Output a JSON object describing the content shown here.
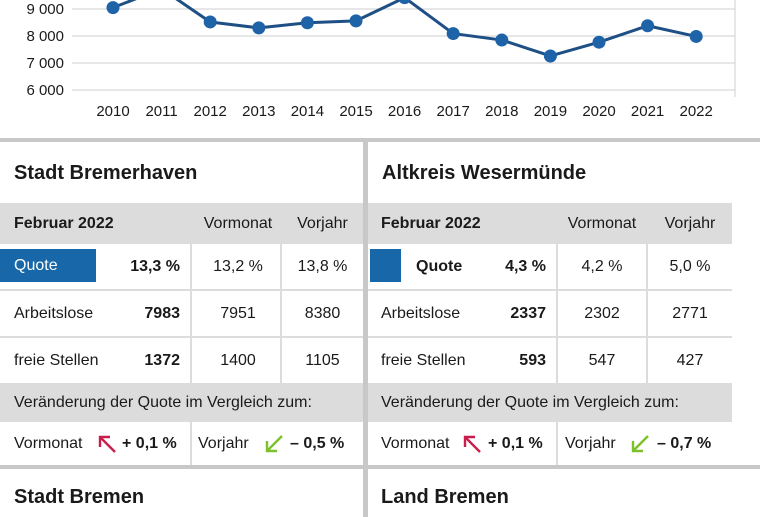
{
  "chart_data": {
    "type": "line",
    "categories": [
      "2010",
      "2011",
      "2012",
      "2013",
      "2014",
      "2015",
      "2016",
      "2017",
      "2018",
      "2019",
      "2020",
      "2021",
      "2022"
    ],
    "values": [
      9050,
      9750,
      8520,
      8300,
      8490,
      8560,
      9420,
      8090,
      7850,
      7260,
      7770,
      8380,
      7983
    ],
    "y_ticks": [
      "6 000",
      "7 000",
      "8 000",
      "9 000"
    ],
    "y_tick_values": [
      6000,
      7000,
      8000,
      9000
    ],
    "ylim": [
      6000,
      9400
    ],
    "grid": true,
    "line_color": "#1e4f85",
    "point_color": "#1e63a8"
  },
  "colors": {
    "quote_blue": "#1767a9",
    "arrow_up": "#c81e4b",
    "arrow_down": "#7cc12a",
    "gray": "#dcdcdc"
  },
  "bremerhaven": {
    "title": "Stadt Bremerhaven",
    "header": {
      "period": "Februar 2022",
      "prev_month": "Vormonat",
      "prev_year": "Vorjahr"
    },
    "quote": {
      "label": "Quote",
      "value": "13,3 %",
      "prev_month": "13,2 %",
      "prev_year": "13,8 %"
    },
    "unemployed": {
      "label": "Arbeitslose",
      "value": "7983",
      "prev_month": "7951",
      "prev_year": "8380"
    },
    "vacancies": {
      "label": "freie Stellen",
      "value": "1372",
      "prev_month": "1400",
      "prev_year": "1105"
    },
    "change_text": "Veränderung der Quote im Vergleich zum:",
    "change": {
      "month_label": "Vormonat",
      "month_icon": "arrow-up-left-icon",
      "month_value": "+ 0,1 %",
      "year_label": "Vorjahr",
      "year_icon": "arrow-down-left-icon",
      "year_value": "– 0,5 %"
    }
  },
  "wesermuende": {
    "title": "Altkreis Wesermünde",
    "header": {
      "period": "Februar 2022",
      "prev_month": "Vormonat",
      "prev_year": "Vorjahr"
    },
    "quote": {
      "label": "Quote",
      "value": "4,3 %",
      "prev_month": "4,2 %",
      "prev_year": "5,0 %"
    },
    "unemployed": {
      "label": "Arbeitslose",
      "value": "2337",
      "prev_month": "2302",
      "prev_year": "2771"
    },
    "vacancies": {
      "label": "freie Stellen",
      "value": "593",
      "prev_month": "547",
      "prev_year": "427"
    },
    "change_text": "Veränderung der Quote im Vergleich zum:",
    "change": {
      "month_label": "Vormonat",
      "month_icon": "arrow-up-left-icon",
      "month_value": "+ 0,1 %",
      "year_label": "Vorjahr",
      "year_icon": "arrow-down-left-icon",
      "year_value": "– 0,7 %"
    }
  },
  "next_sections": {
    "left_title": "Stadt Bremen",
    "right_title": "Land Bremen"
  }
}
